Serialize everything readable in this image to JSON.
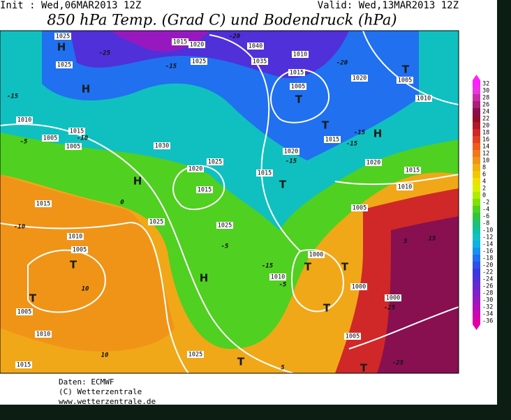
{
  "header": {
    "init": "Init : Wed,06MAR2013 12Z",
    "valid": "Valid: Wed,13MAR2013 12Z",
    "title": "850 hPa Temp. (Grad C) und Bodendruck (hPa)"
  },
  "colorbar": {
    "values": [
      32,
      30,
      28,
      26,
      24,
      22,
      20,
      18,
      16,
      14,
      12,
      10,
      8,
      6,
      4,
      2,
      0,
      -2,
      -4,
      -6,
      -8,
      -10,
      -12,
      -14,
      -16,
      -18,
      -20,
      -22,
      -24,
      -26,
      -28,
      -30,
      -32,
      -34,
      -36
    ],
    "colors": [
      "#ff20ff",
      "#e838d8",
      "#c82ca8",
      "#a8207a",
      "#881050",
      "#90102c",
      "#b01828",
      "#d02828",
      "#e04020",
      "#f05a1c",
      "#f07818",
      "#f09418",
      "#f0b010",
      "#f0c800",
      "#f0e000",
      "#d8f000",
      "#b0ec00",
      "#80e000",
      "#50d020",
      "#30c440",
      "#20c070",
      "#10c0a0",
      "#10c0c8",
      "#10b0e0",
      "#1890f0",
      "#2070f0",
      "#3050e8",
      "#3838e0",
      "#5030d8",
      "#6828d0",
      "#8020c8",
      "#9818c0",
      "#b010b8",
      "#c808b0",
      "#e000a8"
    ]
  },
  "map": {
    "labels": [
      "1025",
      "H",
      "1025",
      "H",
      "-25",
      "1015",
      "1020",
      "-15",
      "1025",
      "-20",
      "1040",
      "1035",
      "1010",
      "1015",
      "1005",
      "T",
      "-20",
      "1020",
      "1005",
      "T",
      "1010",
      "-15",
      "1010",
      "1015",
      "-10",
      "1005",
      "1005",
      "-5",
      "1030",
      "1020",
      "1025",
      "H",
      "1015",
      "1015",
      "-15",
      "1020",
      "T",
      "-15",
      "H",
      "1015",
      "-15",
      "1020",
      "T",
      "1015",
      "1010",
      "1005",
      "1015",
      "-10",
      "1025",
      "1025",
      "0",
      "-5",
      "1010",
      "1005",
      "T",
      "10",
      "T",
      "1005",
      "1010",
      "H",
      "-15",
      "1010",
      "-5",
      "1000",
      "T",
      "T",
      "1000",
      "1000",
      "T",
      "-25",
      "15",
      "5",
      "1005",
      "1015",
      "1025",
      "10",
      "T",
      "5",
      "T",
      "-25"
    ]
  },
  "footer": {
    "source": "Daten: ECMWF",
    "copyright": "(C) Wetterzentrale",
    "url": "www.wetterzentrale.de"
  }
}
